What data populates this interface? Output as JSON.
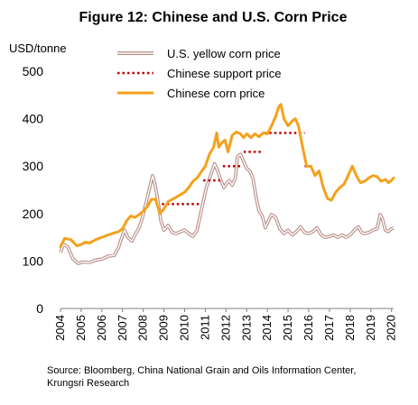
{
  "chart_data": {
    "type": "line",
    "title": "Figure 12: Chinese and U.S. Corn Price",
    "ylabel": "USD/tonne",
    "xlabel": "",
    "ylim": [
      0,
      500
    ],
    "yticks": [
      0,
      100,
      200,
      300,
      400,
      500
    ],
    "xticks": [
      "2004",
      "2005",
      "2006",
      "2007",
      "2008",
      "2009",
      "2010",
      "2011",
      "2012",
      "2013",
      "2014",
      "2015",
      "2016",
      "2017",
      "2018",
      "2019",
      "2020"
    ],
    "xlim": [
      2004,
      2020.1
    ],
    "grid": false,
    "legend": "top-right",
    "series": [
      {
        "name": "U.S. yellow corn price",
        "style": "double-line",
        "color": "#b58c86",
        "points": [
          [
            2004.0,
            118
          ],
          [
            2004.15,
            135
          ],
          [
            2004.35,
            130
          ],
          [
            2004.6,
            105
          ],
          [
            2004.85,
            95
          ],
          [
            2005.1,
            98
          ],
          [
            2005.4,
            97
          ],
          [
            2005.7,
            102
          ],
          [
            2006.0,
            104
          ],
          [
            2006.3,
            110
          ],
          [
            2006.6,
            112
          ],
          [
            2006.8,
            128
          ],
          [
            2006.95,
            148
          ],
          [
            2007.1,
            165
          ],
          [
            2007.25,
            150
          ],
          [
            2007.45,
            142
          ],
          [
            2007.6,
            155
          ],
          [
            2007.8,
            170
          ],
          [
            2007.95,
            190
          ],
          [
            2008.15,
            225
          ],
          [
            2008.35,
            262
          ],
          [
            2008.45,
            280
          ],
          [
            2008.55,
            265
          ],
          [
            2008.7,
            230
          ],
          [
            2008.85,
            185
          ],
          [
            2009.0,
            165
          ],
          [
            2009.2,
            175
          ],
          [
            2009.4,
            160
          ],
          [
            2009.6,
            158
          ],
          [
            2009.8,
            162
          ],
          [
            2010.0,
            165
          ],
          [
            2010.2,
            158
          ],
          [
            2010.4,
            152
          ],
          [
            2010.6,
            165
          ],
          [
            2010.75,
            195
          ],
          [
            2010.9,
            225
          ],
          [
            2011.05,
            255
          ],
          [
            2011.25,
            280
          ],
          [
            2011.45,
            305
          ],
          [
            2011.6,
            290
          ],
          [
            2011.75,
            270
          ],
          [
            2011.9,
            255
          ],
          [
            2012.0,
            262
          ],
          [
            2012.15,
            270
          ],
          [
            2012.3,
            260
          ],
          [
            2012.45,
            275
          ],
          [
            2012.55,
            320
          ],
          [
            2012.7,
            325
          ],
          [
            2012.85,
            310
          ],
          [
            2013.0,
            295
          ],
          [
            2013.15,
            290
          ],
          [
            2013.3,
            275
          ],
          [
            2013.45,
            235
          ],
          [
            2013.6,
            205
          ],
          [
            2013.75,
            195
          ],
          [
            2013.9,
            170
          ],
          [
            2014.05,
            185
          ],
          [
            2014.2,
            198
          ],
          [
            2014.4,
            192
          ],
          [
            2014.6,
            168
          ],
          [
            2014.8,
            158
          ],
          [
            2015.0,
            165
          ],
          [
            2015.2,
            155
          ],
          [
            2015.4,
            162
          ],
          [
            2015.6,
            172
          ],
          [
            2015.8,
            160
          ],
          [
            2016.0,
            158
          ],
          [
            2016.2,
            162
          ],
          [
            2016.4,
            170
          ],
          [
            2016.6,
            155
          ],
          [
            2016.8,
            150
          ],
          [
            2017.0,
            152
          ],
          [
            2017.2,
            155
          ],
          [
            2017.4,
            150
          ],
          [
            2017.6,
            155
          ],
          [
            2017.8,
            150
          ],
          [
            2018.0,
            155
          ],
          [
            2018.2,
            165
          ],
          [
            2018.4,
            172
          ],
          [
            2018.55,
            160
          ],
          [
            2018.7,
            158
          ],
          [
            2018.9,
            160
          ],
          [
            2019.1,
            165
          ],
          [
            2019.3,
            168
          ],
          [
            2019.45,
            198
          ],
          [
            2019.55,
            190
          ],
          [
            2019.7,
            165
          ],
          [
            2019.85,
            162
          ],
          [
            2020.0,
            168
          ],
          [
            2020.1,
            170
          ]
        ]
      },
      {
        "name": "Chinese support price",
        "style": "dotted",
        "color": "#c00000",
        "segments": [
          [
            [
              2008.9,
              220
            ],
            [
              2010.8,
              220
            ]
          ],
          [
            [
              2010.9,
              270
            ],
            [
              2011.8,
              270
            ]
          ],
          [
            [
              2011.85,
              300
            ],
            [
              2012.8,
              300
            ]
          ],
          [
            [
              2012.85,
              330
            ],
            [
              2013.8,
              330
            ]
          ],
          [
            [
              2013.85,
              370
            ],
            [
              2015.8,
              370
            ]
          ],
          [
            [
              2015.8,
              300
            ],
            [
              2016.2,
              300
            ]
          ]
        ]
      },
      {
        "name": "Chinese corn price",
        "style": "solid",
        "color": "#f4a11c",
        "points": [
          [
            2004.0,
            130
          ],
          [
            2004.2,
            148
          ],
          [
            2004.5,
            145
          ],
          [
            2004.8,
            132
          ],
          [
            2005.0,
            135
          ],
          [
            2005.2,
            140
          ],
          [
            2005.4,
            138
          ],
          [
            2005.7,
            145
          ],
          [
            2006.0,
            150
          ],
          [
            2006.3,
            155
          ],
          [
            2006.5,
            158
          ],
          [
            2006.8,
            162
          ],
          [
            2007.0,
            168
          ],
          [
            2007.2,
            185
          ],
          [
            2007.4,
            195
          ],
          [
            2007.6,
            192
          ],
          [
            2007.8,
            198
          ],
          [
            2008.0,
            205
          ],
          [
            2008.2,
            215
          ],
          [
            2008.4,
            230
          ],
          [
            2008.6,
            230
          ],
          [
            2008.8,
            200
          ],
          [
            2009.0,
            210
          ],
          [
            2009.2,
            225
          ],
          [
            2009.4,
            230
          ],
          [
            2009.6,
            235
          ],
          [
            2009.8,
            240
          ],
          [
            2010.0,
            245
          ],
          [
            2010.2,
            255
          ],
          [
            2010.4,
            268
          ],
          [
            2010.6,
            275
          ],
          [
            2010.8,
            288
          ],
          [
            2011.0,
            300
          ],
          [
            2011.2,
            325
          ],
          [
            2011.4,
            340
          ],
          [
            2011.55,
            370
          ],
          [
            2011.65,
            340
          ],
          [
            2011.8,
            350
          ],
          [
            2011.95,
            355
          ],
          [
            2012.1,
            330
          ],
          [
            2012.3,
            365
          ],
          [
            2012.5,
            372
          ],
          [
            2012.7,
            368
          ],
          [
            2012.85,
            360
          ],
          [
            2013.0,
            368
          ],
          [
            2013.2,
            360
          ],
          [
            2013.4,
            368
          ],
          [
            2013.6,
            362
          ],
          [
            2013.8,
            370
          ],
          [
            2014.0,
            368
          ],
          [
            2014.2,
            385
          ],
          [
            2014.4,
            405
          ],
          [
            2014.55,
            425
          ],
          [
            2014.65,
            430
          ],
          [
            2014.8,
            400
          ],
          [
            2015.0,
            385
          ],
          [
            2015.2,
            395
          ],
          [
            2015.35,
            400
          ],
          [
            2015.5,
            385
          ],
          [
            2015.7,
            340
          ],
          [
            2015.9,
            300
          ],
          [
            2016.1,
            300
          ],
          [
            2016.3,
            280
          ],
          [
            2016.5,
            290
          ],
          [
            2016.7,
            255
          ],
          [
            2016.9,
            232
          ],
          [
            2017.1,
            228
          ],
          [
            2017.3,
            245
          ],
          [
            2017.5,
            255
          ],
          [
            2017.7,
            262
          ],
          [
            2017.85,
            275
          ],
          [
            2018.0,
            290
          ],
          [
            2018.1,
            300
          ],
          [
            2018.3,
            280
          ],
          [
            2018.5,
            265
          ],
          [
            2018.7,
            268
          ],
          [
            2018.9,
            275
          ],
          [
            2019.1,
            280
          ],
          [
            2019.3,
            278
          ],
          [
            2019.5,
            268
          ],
          [
            2019.7,
            272
          ],
          [
            2019.85,
            265
          ],
          [
            2020.0,
            270
          ],
          [
            2020.1,
            275
          ]
        ]
      }
    ],
    "source": [
      "Source: Bloomberg, China National Grain and Oils Information Center,",
      "Krungsri Research"
    ]
  }
}
